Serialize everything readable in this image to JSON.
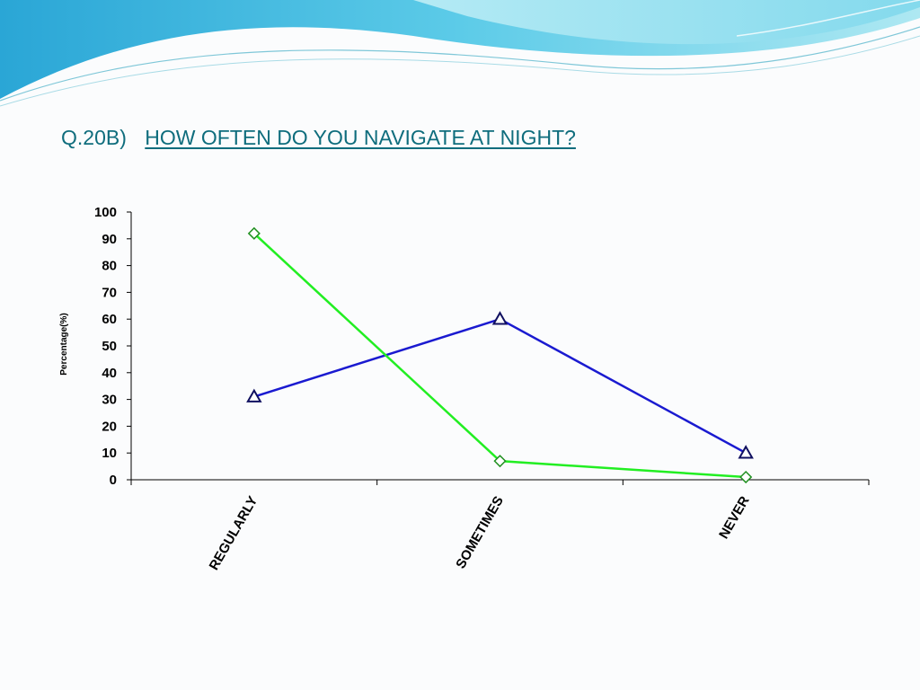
{
  "slide": {
    "question_number": "Q.20B)",
    "question_text": "HOW OFTEN DO YOU NAVIGATE AT NIGHT?"
  },
  "colors": {
    "title": "#0f6d7d",
    "wave_dark": "#3fb6e0",
    "wave_light": "#9fe3ef"
  },
  "chart_data": {
    "type": "line",
    "title": "",
    "xlabel": "",
    "ylabel": "Percentage(%)",
    "ylim": [
      0,
      100
    ],
    "yticks": [
      0,
      10,
      20,
      30,
      40,
      50,
      60,
      70,
      80,
      90,
      100
    ],
    "categories": [
      "REGULARLY",
      "SOMETIMES",
      "NEVER"
    ],
    "series": [
      {
        "color": "#1a1ad0",
        "marker": "triangle",
        "values": [
          31,
          60,
          10
        ]
      },
      {
        "color": "#22ee22",
        "marker": "diamond",
        "values": [
          92,
          7,
          1
        ]
      }
    ],
    "grid": false,
    "legend": "none"
  }
}
